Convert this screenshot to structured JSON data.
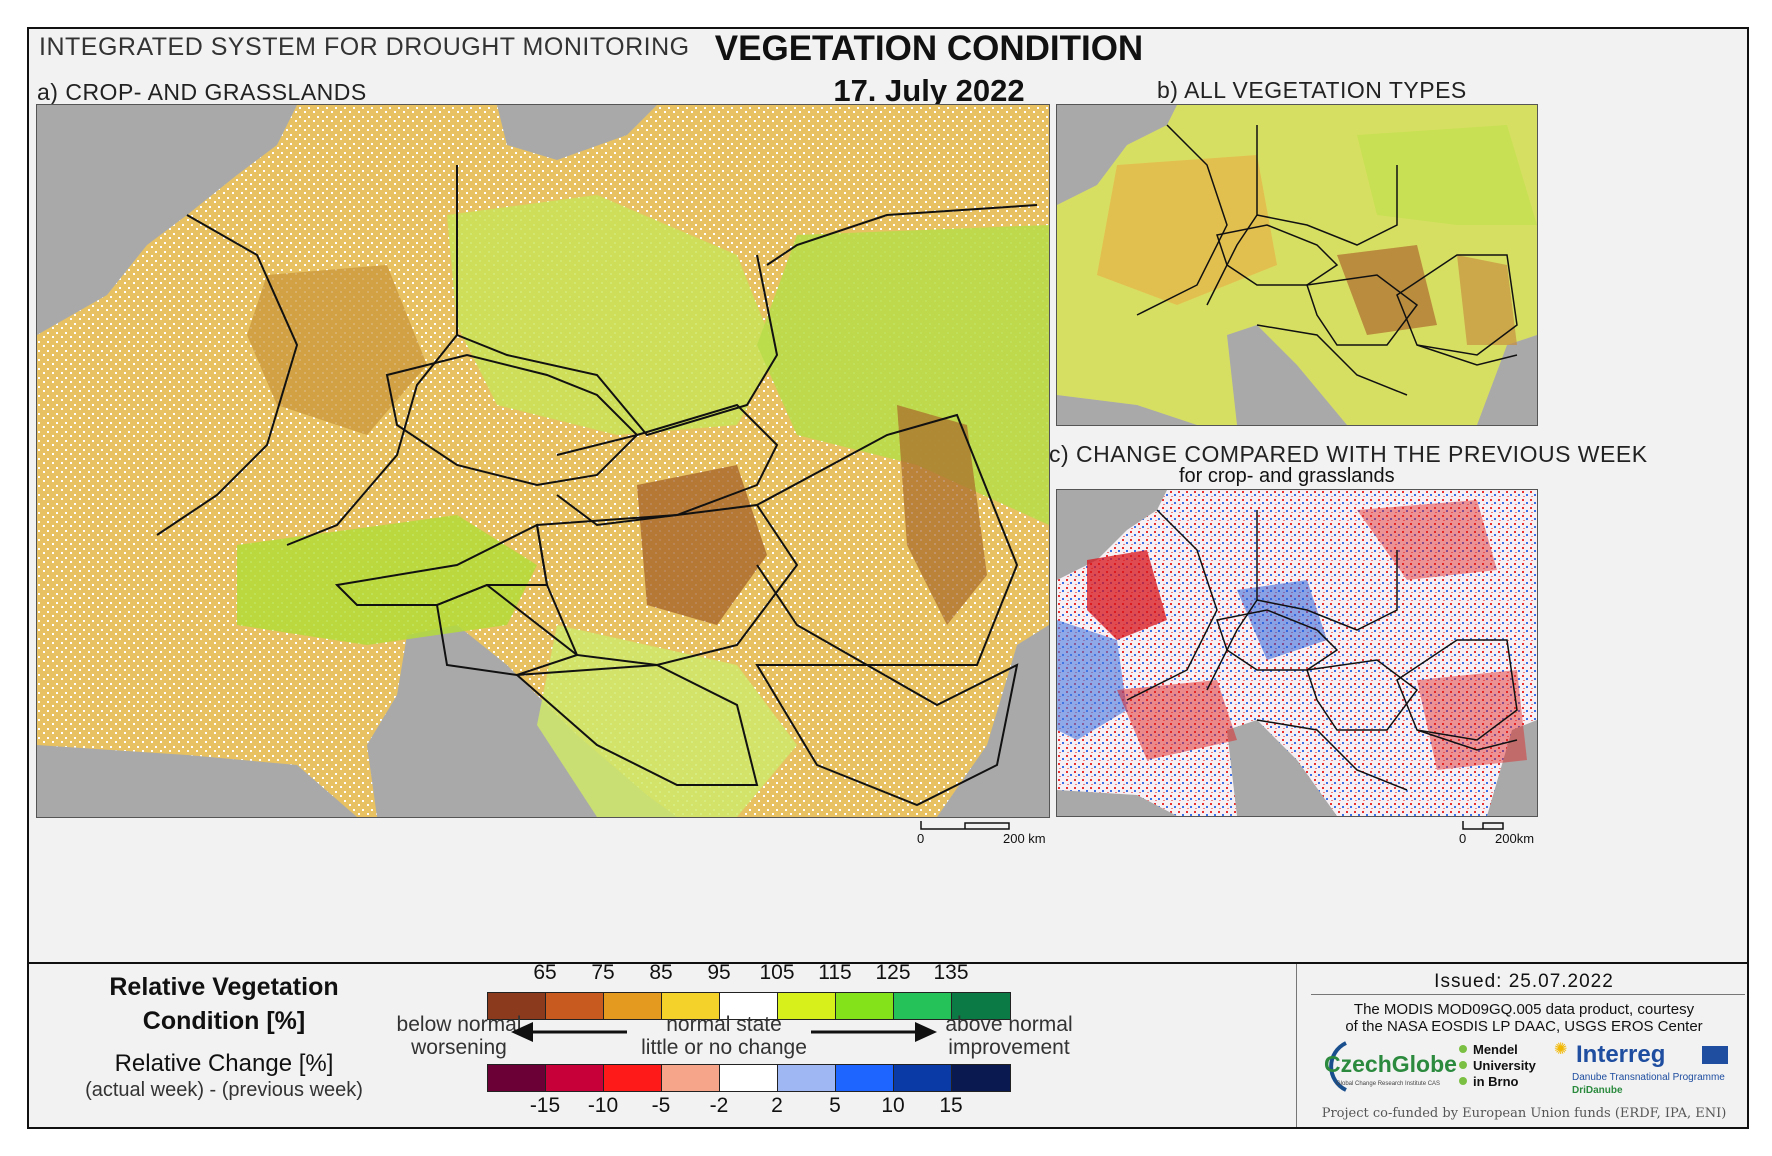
{
  "header": {
    "system": "INTEGRATED SYSTEM FOR DROUGHT MONITORING",
    "title": "VEGETATION CONDITION",
    "date": "17. July 2022"
  },
  "panels": {
    "a": {
      "label": "a) CROP- AND GRASSLANDS",
      "scale_zero": "0",
      "scale_max": "200 km"
    },
    "b": {
      "label": "b) ALL VEGETATION TYPES"
    },
    "c": {
      "label": "c) CHANGE COMPARED WITH THE PREVIOUS WEEK",
      "sublabel": "for crop- and grasslands",
      "scale_zero": "0",
      "scale_max": "200km"
    }
  },
  "legend": {
    "rvc_title_line1": "Relative Vegetation",
    "rvc_title_line2": "Condition [%]",
    "rc_title": "Relative Change [%]",
    "rc_subtitle": "(actual week) - (previous week)",
    "left_line1": "below normal",
    "left_line2": "worsening",
    "mid_line1": "normal state",
    "mid_line2": "little or no change",
    "right_line1": "above normal",
    "right_line2": "improvement",
    "rvc_ticks": [
      "65",
      "75",
      "85",
      "95",
      "105",
      "115",
      "125",
      "135"
    ],
    "rvc_colors": [
      "#8b3a1e",
      "#c85a1f",
      "#e49a1e",
      "#f5d22a",
      "#ffffff",
      "#d7f01c",
      "#84e21a",
      "#25c25a",
      "#0b7a45"
    ],
    "rc_ticks": [
      "-15",
      "-10",
      "-5",
      "-2",
      "2",
      "5",
      "10",
      "15"
    ],
    "rc_colors": [
      "#6a0035",
      "#c8003a",
      "#ff1a1a",
      "#f6a58a",
      "#ffffff",
      "#9fb7f3",
      "#1e64ff",
      "#0a3aa6",
      "#0a1a50"
    ]
  },
  "info": {
    "issued": "Issued: 25.07.2022",
    "credit_line1": "The MODIS MOD09GQ.005 data product, courtesy",
    "credit_line2": "of the NASA EOSDIS LP DAAC, USGS EROS Center",
    "funding": "Project co-funded by European Union funds (ERDF, IPA, ENI)",
    "logo_czechglobe": "CzechGlobe",
    "logo_czechglobe_sub": "Global Change Research Institute CAS",
    "logo_mendel": [
      "Mendel",
      "University",
      "in Brno"
    ],
    "logo_interreg": "Interreg",
    "logo_interreg_sub1": "Danube Transnational Programme",
    "logo_interreg_sub2": "DriDanube"
  },
  "colors": {
    "sea": "#a9a9a9",
    "border": "#111111"
  }
}
